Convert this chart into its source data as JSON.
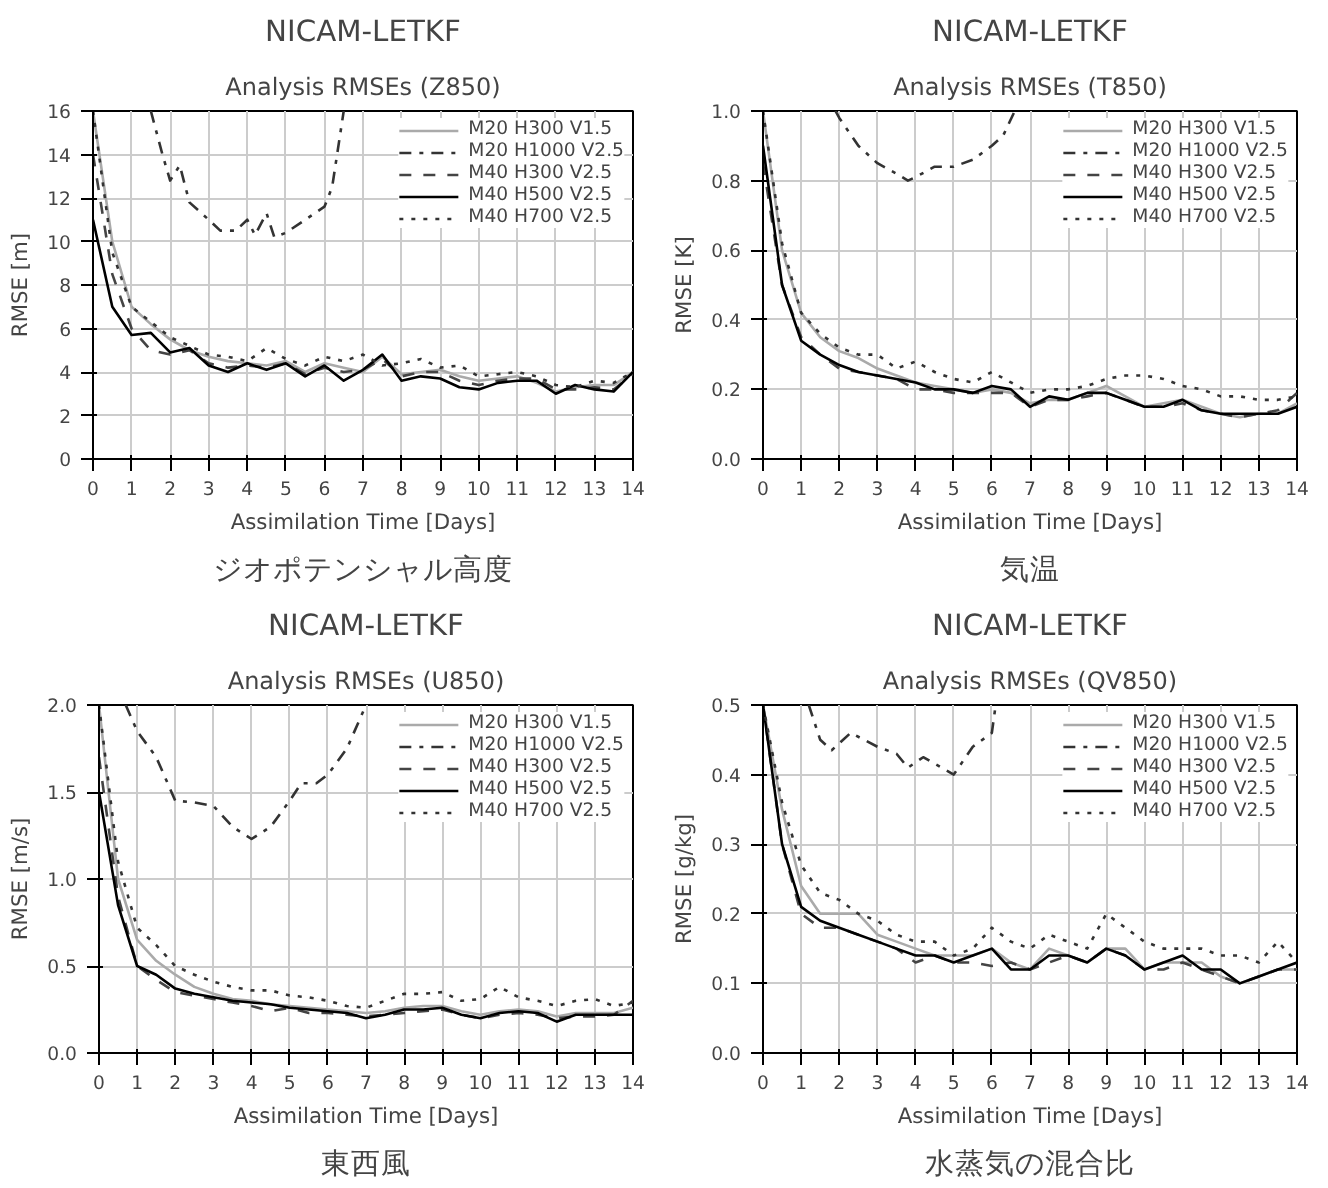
{
  "chart_data": [
    {
      "type": "line",
      "title": "NICAM-LETKF",
      "subtitle": "Analysis RMSEs (Z850)",
      "xlabel": "Assimilation Time [Days]",
      "ylabel": "RMSE [m]",
      "annotations": [
        "ジオポテンシャル高度"
      ],
      "xlim": [
        0,
        14
      ],
      "xticks": [
        0,
        1,
        2,
        3,
        4,
        5,
        6,
        7,
        8,
        9,
        10,
        11,
        12,
        13,
        14
      ],
      "ylim": [
        0,
        16
      ],
      "yticks": [
        0,
        2,
        4,
        6,
        8,
        10,
        12,
        14,
        16
      ],
      "grid": true,
      "legend": "top right",
      "x": [
        0,
        0.5,
        1,
        1.5,
        2,
        2.5,
        3,
        3.5,
        4,
        4.5,
        5,
        5.5,
        6,
        6.5,
        7,
        7.5,
        8,
        8.5,
        9,
        9.5,
        10,
        10.5,
        11,
        11.5,
        12,
        12.5,
        13,
        13.5,
        14
      ],
      "series": [
        {
          "name": "M20 H300 V1.5",
          "color": "#aaaaaa",
          "line_style": "solid",
          "values": [
            16,
            10,
            7,
            6.2,
            5.5,
            5,
            4.7,
            4.5,
            4.4,
            4.3,
            4.5,
            4.0,
            4.4,
            4.2,
            4.0,
            4.7,
            3.9,
            4.0,
            4.1,
            3.8,
            3.6,
            3.7,
            3.8,
            3.5,
            3.1,
            3.3,
            3.4,
            3.4,
            4.0
          ]
        },
        {
          "name": "M20 H1000 V2.5",
          "color": "#333333",
          "line_style": "dashdot",
          "x": [
            1.5,
            1.8,
            2,
            2.25,
            2.5,
            3,
            3.3,
            3.7,
            4,
            4.2,
            4.5,
            4.7,
            5,
            5.5,
            6,
            6.2,
            6.5
          ],
          "values": [
            16,
            14,
            12.8,
            13.5,
            11.8,
            11,
            10.5,
            10.5,
            11,
            10.3,
            11.3,
            10.2,
            10.4,
            11,
            11.6,
            12.5,
            16
          ]
        },
        {
          "name": "M40 H300 V2.5",
          "color": "#444444",
          "line_style": "dashed",
          "values": [
            14,
            8.5,
            6,
            5,
            4.8,
            5,
            4.4,
            4.2,
            4.3,
            4.2,
            4.4,
            3.9,
            4.2,
            4.0,
            4.1,
            4.6,
            3.8,
            4.0,
            4.0,
            3.6,
            3.4,
            3.6,
            3.7,
            3.7,
            3.2,
            3.2,
            3.3,
            3.2,
            3.9
          ]
        },
        {
          "name": "M40 H500 V2.5",
          "color": "#000000",
          "line_style": "solid",
          "values": [
            11,
            7,
            5.7,
            5.8,
            4.9,
            5.1,
            4.3,
            4.0,
            4.4,
            4.1,
            4.4,
            3.8,
            4.3,
            3.6,
            4.1,
            4.8,
            3.6,
            3.8,
            3.7,
            3.3,
            3.2,
            3.5,
            3.6,
            3.6,
            3.0,
            3.4,
            3.2,
            3.1,
            4.0
          ]
        },
        {
          "name": "M40 H700 V2.5",
          "color": "#333333",
          "line_style": "dotted",
          "values": [
            16,
            9.5,
            7,
            6.3,
            5.6,
            5.2,
            4.8,
            4.7,
            4.5,
            5.1,
            4.6,
            4.3,
            4.7,
            4.5,
            4.8,
            4.3,
            4.4,
            4.6,
            4.2,
            4.3,
            3.8,
            3.9,
            4.0,
            3.8,
            3.4,
            3.3,
            3.6,
            3.5,
            4.0
          ]
        }
      ]
    },
    {
      "type": "line",
      "title": "NICAM-LETKF",
      "subtitle": "Analysis RMSEs (T850)",
      "xlabel": "Assimilation Time [Days]",
      "ylabel": "RMSE [K]",
      "annotations": [
        "気温"
      ],
      "xlim": [
        0,
        14
      ],
      "xticks": [
        0,
        1,
        2,
        3,
        4,
        5,
        6,
        7,
        8,
        9,
        10,
        11,
        12,
        13,
        14
      ],
      "ylim": [
        0,
        1
      ],
      "yticks": [
        {
          "value": 0,
          "label": "0.0"
        },
        0.2,
        0.4,
        0.6,
        0.8,
        {
          "value": 1,
          "label": "1.0"
        }
      ],
      "grid": true,
      "legend": "top right",
      "x": [
        0,
        0.5,
        1,
        1.5,
        2,
        2.5,
        3,
        3.5,
        4,
        4.5,
        5,
        5.5,
        6,
        6.5,
        7,
        7.5,
        8,
        8.5,
        9,
        9.5,
        10,
        10.5,
        11,
        11.5,
        12,
        12.5,
        13,
        13.5,
        14
      ],
      "series": [
        {
          "name": "M20 H300 V1.5",
          "color": "#aaaaaa",
          "line_style": "solid",
          "values": [
            1.0,
            0.6,
            0.42,
            0.35,
            0.31,
            0.29,
            0.26,
            0.24,
            0.22,
            0.21,
            0.2,
            0.19,
            0.2,
            0.19,
            0.16,
            0.17,
            0.17,
            0.19,
            0.21,
            0.18,
            0.15,
            0.16,
            0.17,
            0.15,
            0.13,
            0.12,
            0.13,
            0.13,
            0.16
          ]
        },
        {
          "name": "M20 H1000 V2.5",
          "color": "#333333",
          "line_style": "dashdot",
          "x": [
            1.9,
            2,
            2.5,
            3,
            3.5,
            3.8,
            4,
            4.5,
            5,
            5.5,
            6,
            6.3,
            6.6
          ],
          "values": [
            1.0,
            0.98,
            0.9,
            0.85,
            0.82,
            0.8,
            0.81,
            0.84,
            0.84,
            0.86,
            0.9,
            0.93,
            1.0
          ]
        },
        {
          "name": "M40 H300 V2.5",
          "color": "#444444",
          "line_style": "dashed",
          "values": [
            0.85,
            0.5,
            0.35,
            0.3,
            0.26,
            0.25,
            0.24,
            0.23,
            0.2,
            0.2,
            0.19,
            0.19,
            0.19,
            0.19,
            0.15,
            0.17,
            0.17,
            0.18,
            0.19,
            0.17,
            0.15,
            0.15,
            0.16,
            0.14,
            0.13,
            0.12,
            0.13,
            0.14,
            0.19
          ]
        },
        {
          "name": "M40 H500 V2.5",
          "color": "#000000",
          "line_style": "solid",
          "values": [
            0.9,
            0.5,
            0.34,
            0.3,
            0.27,
            0.25,
            0.24,
            0.23,
            0.22,
            0.2,
            0.2,
            0.19,
            0.21,
            0.2,
            0.15,
            0.18,
            0.17,
            0.19,
            0.19,
            0.17,
            0.15,
            0.15,
            0.17,
            0.14,
            0.13,
            0.13,
            0.13,
            0.13,
            0.15
          ]
        },
        {
          "name": "M40 H700 V2.5",
          "color": "#333333",
          "line_style": "dotted",
          "values": [
            1.0,
            0.62,
            0.42,
            0.36,
            0.32,
            0.3,
            0.3,
            0.26,
            0.28,
            0.25,
            0.23,
            0.22,
            0.25,
            0.22,
            0.19,
            0.2,
            0.2,
            0.21,
            0.23,
            0.24,
            0.24,
            0.23,
            0.21,
            0.2,
            0.18,
            0.18,
            0.17,
            0.17,
            0.18
          ]
        }
      ]
    },
    {
      "type": "line",
      "title": "NICAM-LETKF",
      "subtitle": "Analysis RMSEs (U850)",
      "xlabel": "Assimilation Time [Days]",
      "ylabel": "RMSE [m/s]",
      "annotations": [
        "東西風"
      ],
      "xlim": [
        0,
        14
      ],
      "xticks": [
        0,
        1,
        2,
        3,
        4,
        5,
        6,
        7,
        8,
        9,
        10,
        11,
        12,
        13,
        14
      ],
      "ylim": [
        0,
        2
      ],
      "yticks": [
        {
          "value": 0,
          "label": "0.0"
        },
        0.5,
        {
          "value": 1,
          "label": "1.0"
        },
        1.5,
        {
          "value": 2,
          "label": "2.0"
        }
      ],
      "grid": true,
      "legend": "top right",
      "x": [
        0,
        0.5,
        1,
        1.5,
        2,
        2.5,
        3,
        3.5,
        4,
        4.5,
        5,
        5.5,
        6,
        6.5,
        7,
        7.5,
        8,
        8.5,
        9,
        9.5,
        10,
        10.5,
        11,
        11.5,
        12,
        12.5,
        13,
        13.5,
        14
      ],
      "series": [
        {
          "name": "M20 H300 V1.5",
          "color": "#aaaaaa",
          "line_style": "solid",
          "values": [
            2.0,
            1.0,
            0.65,
            0.53,
            0.45,
            0.38,
            0.34,
            0.31,
            0.3,
            0.28,
            0.27,
            0.26,
            0.25,
            0.24,
            0.23,
            0.24,
            0.26,
            0.27,
            0.27,
            0.24,
            0.22,
            0.24,
            0.25,
            0.24,
            0.21,
            0.23,
            0.23,
            0.23,
            0.26
          ]
        },
        {
          "name": "M20 H1000 V2.5",
          "color": "#333333",
          "line_style": "dashdot",
          "x": [
            0.7,
            1,
            1.5,
            2,
            2.5,
            3,
            3.5,
            4,
            4.5,
            5,
            5.3,
            5.7,
            6,
            6.5,
            7
          ],
          "values": [
            2.0,
            1.85,
            1.7,
            1.45,
            1.44,
            1.42,
            1.3,
            1.23,
            1.3,
            1.45,
            1.55,
            1.55,
            1.6,
            1.75,
            2.0
          ]
        },
        {
          "name": "M40 H300 V2.5",
          "color": "#444444",
          "line_style": "dashed",
          "values": [
            1.7,
            0.9,
            0.5,
            0.42,
            0.35,
            0.33,
            0.31,
            0.29,
            0.27,
            0.24,
            0.26,
            0.23,
            0.23,
            0.22,
            0.21,
            0.22,
            0.23,
            0.24,
            0.25,
            0.22,
            0.2,
            0.22,
            0.23,
            0.22,
            0.2,
            0.21,
            0.21,
            0.22,
            0.3
          ]
        },
        {
          "name": "M40 H500 V2.5",
          "color": "#000000",
          "line_style": "solid",
          "values": [
            1.5,
            0.85,
            0.5,
            0.45,
            0.37,
            0.34,
            0.32,
            0.3,
            0.29,
            0.28,
            0.26,
            0.25,
            0.24,
            0.23,
            0.2,
            0.22,
            0.25,
            0.25,
            0.26,
            0.22,
            0.2,
            0.23,
            0.24,
            0.23,
            0.18,
            0.22,
            0.22,
            0.22,
            0.22
          ]
        },
        {
          "name": "M40 H700 V2.5",
          "color": "#333333",
          "line_style": "dotted",
          "values": [
            2.0,
            1.1,
            0.72,
            0.62,
            0.5,
            0.45,
            0.41,
            0.38,
            0.36,
            0.36,
            0.33,
            0.32,
            0.3,
            0.27,
            0.26,
            0.3,
            0.34,
            0.34,
            0.35,
            0.3,
            0.31,
            0.38,
            0.32,
            0.3,
            0.27,
            0.3,
            0.31,
            0.27,
            0.29
          ]
        }
      ]
    },
    {
      "type": "line",
      "title": "NICAM-LETKF",
      "subtitle": "Analysis RMSEs (QV850)",
      "xlabel": "Assimilation Time [Days]",
      "ylabel": "RMSE [g/kg]",
      "annotations": [
        "水蒸気の混合比"
      ],
      "xlim": [
        0,
        14
      ],
      "xticks": [
        0,
        1,
        2,
        3,
        4,
        5,
        6,
        7,
        8,
        9,
        10,
        11,
        12,
        13,
        14
      ],
      "ylim": [
        0,
        0.5
      ],
      "yticks": [
        {
          "value": 0,
          "label": "0.0"
        },
        0.1,
        0.2,
        0.3,
        0.4,
        0.5
      ],
      "grid": true,
      "legend": "top right",
      "x": [
        0,
        0.5,
        1,
        1.5,
        2,
        2.5,
        3,
        3.5,
        4,
        4.5,
        5,
        5.5,
        6,
        6.5,
        7,
        7.5,
        8,
        8.5,
        9,
        9.5,
        10,
        10.5,
        11,
        11.5,
        12,
        12.5,
        13,
        13.5,
        14
      ],
      "series": [
        {
          "name": "M20 H300 V1.5",
          "color": "#aaaaaa",
          "line_style": "solid",
          "values": [
            0.5,
            0.35,
            0.24,
            0.2,
            0.2,
            0.2,
            0.17,
            0.16,
            0.15,
            0.14,
            0.14,
            0.14,
            0.15,
            0.13,
            0.12,
            0.15,
            0.14,
            0.13,
            0.15,
            0.15,
            0.12,
            0.13,
            0.13,
            0.13,
            0.11,
            0.1,
            0.11,
            0.12,
            0.12
          ]
        },
        {
          "name": "M20 H1000 V2.5",
          "color": "#333333",
          "line_style": "dashdot",
          "x": [
            1.2,
            1.5,
            1.8,
            2.3,
            3,
            3.5,
            3.8,
            4.2,
            5,
            5.5,
            6,
            6.1
          ],
          "values": [
            0.5,
            0.45,
            0.435,
            0.46,
            0.44,
            0.43,
            0.41,
            0.425,
            0.4,
            0.44,
            0.46,
            0.5
          ]
        },
        {
          "name": "M40 H300 V2.5",
          "color": "#444444",
          "line_style": "dashed",
          "values": [
            0.5,
            0.3,
            0.2,
            0.18,
            0.18,
            0.17,
            0.16,
            0.15,
            0.13,
            0.14,
            0.13,
            0.13,
            0.125,
            0.13,
            0.12,
            0.13,
            0.14,
            0.13,
            0.15,
            0.14,
            0.12,
            0.12,
            0.13,
            0.12,
            0.11,
            0.1,
            0.11,
            0.12,
            0.12
          ]
        },
        {
          "name": "M40 H500 V2.5",
          "color": "#000000",
          "line_style": "solid",
          "values": [
            0.5,
            0.3,
            0.21,
            0.19,
            0.18,
            0.17,
            0.16,
            0.15,
            0.14,
            0.14,
            0.13,
            0.14,
            0.15,
            0.12,
            0.12,
            0.14,
            0.14,
            0.13,
            0.15,
            0.14,
            0.12,
            0.13,
            0.14,
            0.12,
            0.12,
            0.1,
            0.11,
            0.12,
            0.13
          ]
        },
        {
          "name": "M40 H700 V2.5",
          "color": "#333333",
          "line_style": "dotted",
          "values": [
            0.5,
            0.36,
            0.27,
            0.23,
            0.22,
            0.2,
            0.19,
            0.17,
            0.16,
            0.16,
            0.14,
            0.15,
            0.18,
            0.16,
            0.15,
            0.17,
            0.16,
            0.15,
            0.2,
            0.18,
            0.16,
            0.15,
            0.15,
            0.15,
            0.14,
            0.14,
            0.13,
            0.16,
            0.13
          ]
        }
      ]
    }
  ]
}
